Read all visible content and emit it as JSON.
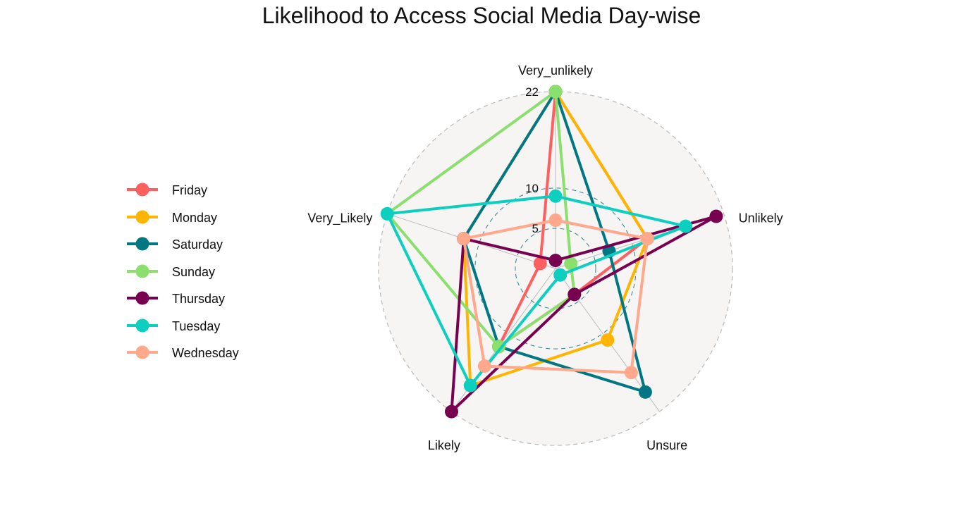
{
  "chart_data": {
    "type": "radar",
    "title": "Likelihood to Access Social Media Day-wise",
    "categories": [
      "Very_unlikely",
      "Unlikely",
      "Unsure",
      "Likely",
      "Very_Likely"
    ],
    "radial_ticks": [
      {
        "value": 5,
        "label": "5"
      },
      {
        "value": 10,
        "label": "10"
      },
      {
        "value": 22,
        "label": "22"
      }
    ],
    "radial_range": [
      0,
      22
    ],
    "legend_position": "left",
    "series": [
      {
        "name": "Friday",
        "color": "#ff5f5f",
        "values": [
          22,
          12,
          4,
          12,
          2
        ]
      },
      {
        "name": "Monday",
        "color": "#ffb400",
        "values": [
          22,
          12,
          11,
          18,
          12
        ]
      },
      {
        "name": "Saturday",
        "color": "#007782",
        "values": [
          22,
          7,
          19,
          12,
          12
        ]
      },
      {
        "name": "Sunday",
        "color": "#8adf6d",
        "values": [
          22,
          2,
          4,
          12,
          22
        ]
      },
      {
        "name": "Thursday",
        "color": "#780050",
        "values": [
          1,
          21,
          4,
          22,
          12
        ]
      },
      {
        "name": "Tuesday",
        "color": "#0ccfc0",
        "values": [
          9,
          17,
          1,
          18,
          22
        ]
      },
      {
        "name": "Wednesday",
        "color": "#ffa88c",
        "values": [
          6,
          12,
          16,
          15,
          12
        ]
      }
    ]
  }
}
